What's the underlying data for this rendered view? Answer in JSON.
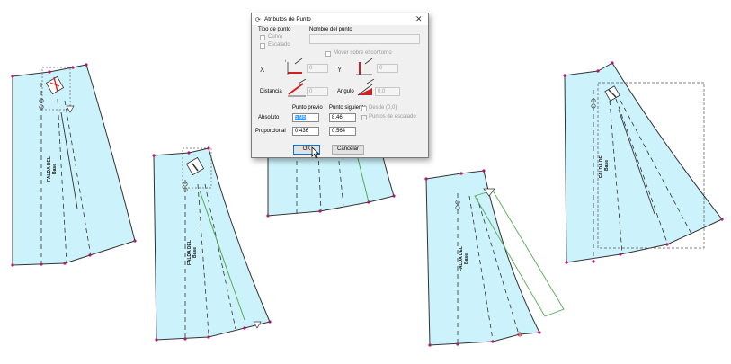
{
  "dialog": {
    "title": "Atributos de Punto",
    "tipo_de_punto_label": "Tipo de punto",
    "nombre_del_punto_label": "Nombre del punto",
    "curva_label": "Curva",
    "escalado_label": "Escalado",
    "mover_solo_contorno_label": "Mover sobre el contorno",
    "x_label": "X",
    "y_label": "Y",
    "x_value": "0",
    "y_value": "0",
    "distancia_label": "Distancia",
    "angulo_label": "Angulo",
    "distancia_value": "0",
    "angulo_value": "0.0",
    "punto_previo_label": "Punto previo",
    "punto_siguiente_label": "Punto siguiente",
    "absoluto_label": "Absoluto",
    "proporcional_label": "Proporcional",
    "absoluto_previo": "5.96",
    "absoluto_siguiente": "8.46",
    "proporcional_previo": "0.436",
    "proporcional_siguiente": "0.564",
    "desde_label": "Desde (0,0)",
    "puntos_escalado_label": "Puntos de escalado",
    "ok_label": "OK",
    "cancel_label": "Cancelar"
  },
  "patterns": {
    "label_line1": "FALDA DEL",
    "label_line2": "Base"
  },
  "colors": {
    "fill": "#ccf2fb",
    "outline": "#222222",
    "point": "#b0186e",
    "selection": "#cc2222",
    "green_line": "#55aa55"
  }
}
